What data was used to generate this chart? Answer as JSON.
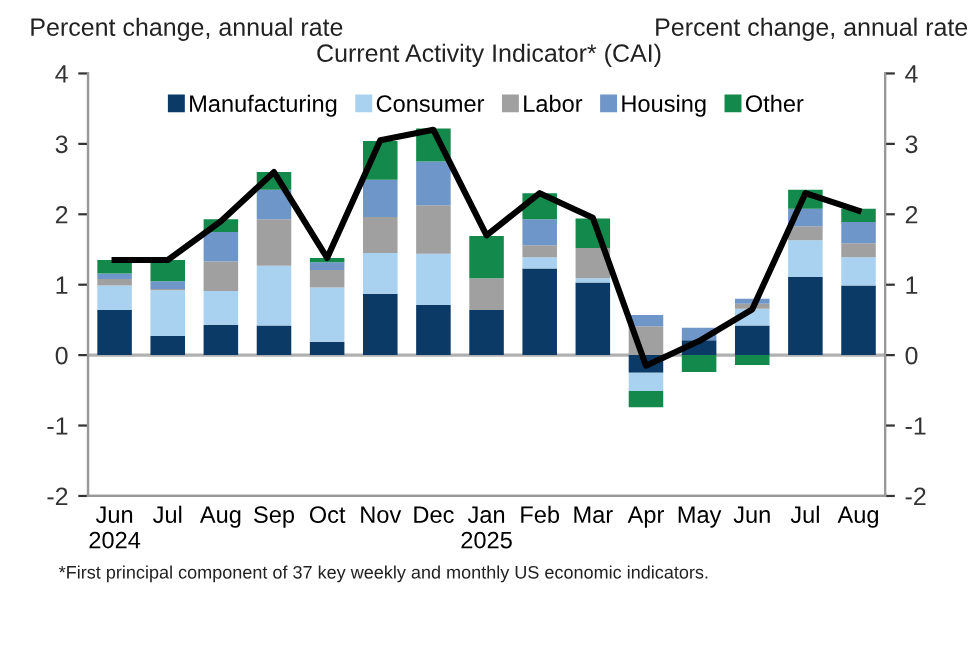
{
  "chart_data": {
    "type": "bar",
    "stacked": true,
    "title": "Current Activity Indicator* (CAI)",
    "ylabel": "Percent change, annual rate",
    "y2label": "Percent change, annual rate",
    "categories": [
      "Jun\n2024",
      "Jul",
      "Aug",
      "Sep",
      "Oct",
      "Nov",
      "Dec",
      "Jan\n2025",
      "Feb",
      "Mar",
      "Apr",
      "May",
      "Jun",
      "Jul",
      "Aug"
    ],
    "series": [
      {
        "name": "Manufacturing",
        "color": "#0b3a66",
        "values": [
          0.64,
          0.27,
          0.43,
          0.42,
          0.19,
          0.87,
          0.71,
          0.64,
          1.23,
          1.03,
          -0.25,
          0.21,
          0.42,
          1.11,
          0.99
        ]
      },
      {
        "name": "Consumer",
        "color": "#a9d1f0",
        "values": [
          0.35,
          0.65,
          0.48,
          0.85,
          0.77,
          0.58,
          0.73,
          null,
          0.16,
          0.06,
          -0.26,
          0.0,
          0.24,
          0.52,
          0.4
        ]
      },
      {
        "name": "Labor",
        "color": "#a0a0a0",
        "values": [
          0.09,
          0.02,
          0.42,
          0.66,
          0.25,
          0.51,
          0.69,
          0.45,
          0.17,
          0.43,
          0.41,
          0.0,
          0.07,
          0.2,
          0.2
        ]
      },
      {
        "name": "Housing",
        "color": "#6f96c8",
        "values": [
          0.08,
          0.11,
          0.42,
          0.42,
          0.11,
          0.53,
          0.62,
          0.0,
          0.37,
          0.0,
          0.16,
          0.18,
          0.07,
          0.25,
          0.3
        ]
      },
      {
        "name": "Other",
        "color": "#138a4b",
        "values": [
          0.19,
          0.3,
          0.18,
          0.25,
          0.06,
          0.55,
          0.47,
          0.6,
          0.37,
          0.42,
          -0.23,
          -0.24,
          -0.14,
          0.27,
          0.19
        ]
      },
      {
        "type": "line",
        "color": "#000000",
        "values": [
          1.35,
          1.35,
          1.9,
          2.6,
          1.38,
          3.05,
          3.2,
          1.7,
          2.3,
          1.95,
          -0.15,
          0.2,
          0.65,
          2.3,
          2.05
        ]
      }
    ],
    "ylim": [
      -2,
      4
    ],
    "yticks": [
      -2,
      -1,
      0,
      1,
      2,
      3,
      4
    ],
    "y2lim": [
      -2,
      4
    ],
    "y2ticks": [
      -2,
      -1,
      0,
      1,
      2,
      3,
      4
    ],
    "grid": false,
    "legend": "top",
    "ref_lines": [
      {
        "axis": "y",
        "value": 0,
        "color": "#b0b0b0"
      }
    ],
    "annotations": [
      "*First principal component of 37 key weekly and monthly US economic indicators."
    ]
  }
}
